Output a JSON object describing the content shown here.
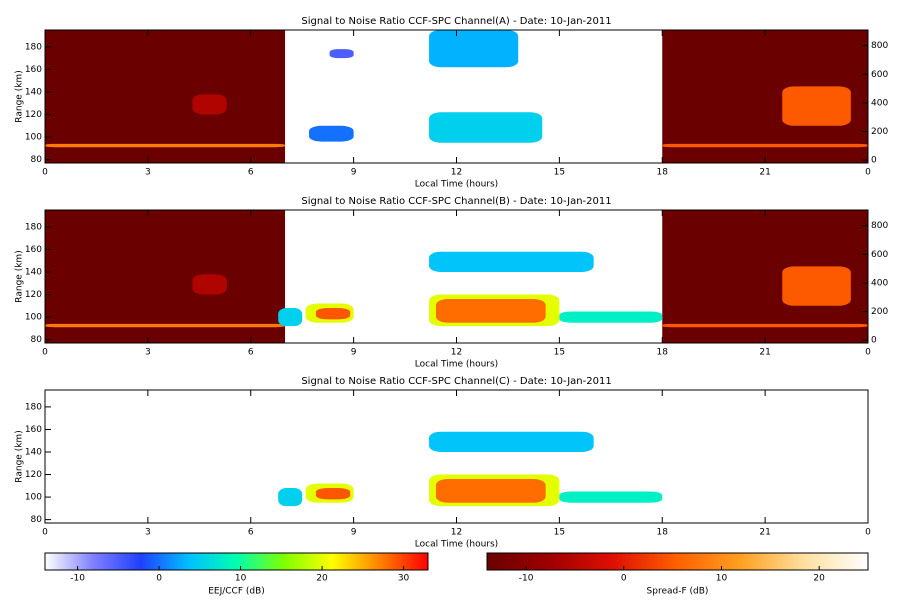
{
  "chart_data": [
    {
      "type": "heatmap",
      "title": "Signal to Noise Ratio CCF-SPC Channel(A) - Date: 10-Jan-2011",
      "xlabel": "Local Time (hours)",
      "ylabel": "Range (km)",
      "xlim": [
        0,
        24
      ],
      "xticks": [
        0,
        3,
        6,
        9,
        12,
        15,
        18,
        21,
        {
          "value": 24,
          "label": "0"
        }
      ],
      "ylim": [
        77,
        195
      ],
      "yticks": [
        80,
        100,
        120,
        140,
        160,
        180
      ],
      "y2lim": [
        -20,
        910
      ],
      "y2ticks": [
        0,
        200,
        400,
        600,
        800
      ],
      "regions": [
        {
          "x": [
            0,
            7
          ],
          "y": [
            77,
            195
          ],
          "value": -14,
          "scale": 1
        },
        {
          "x": [
            18,
            24
          ],
          "y": [
            77,
            195
          ],
          "value": -14,
          "scale": 1
        },
        {
          "x": [
            0,
            7
          ],
          "y": [
            91,
            94
          ],
          "value": 8,
          "scale": 1
        },
        {
          "x": [
            18,
            24
          ],
          "y": [
            91,
            94
          ],
          "value": 5,
          "scale": 1
        },
        {
          "x": [
            4.3,
            5.3
          ],
          "y": [
            120,
            138
          ],
          "value": -6,
          "scale": 1
        },
        {
          "x": [
            21.5,
            23.5
          ],
          "y": [
            110,
            145
          ],
          "value": 5,
          "scale": 1
        },
        {
          "x": [
            7.7,
            9
          ],
          "y": [
            96,
            110
          ],
          "value": 0,
          "scale": 0
        },
        {
          "x": [
            8.3,
            9
          ],
          "y": [
            170,
            178
          ],
          "value": -5,
          "scale": 0
        },
        {
          "x": [
            11.2,
            14.5
          ],
          "y": [
            95,
            122
          ],
          "value": 5,
          "scale": 0
        },
        {
          "x": [
            11.2,
            13.8
          ],
          "y": [
            162,
            195
          ],
          "value": 3,
          "scale": 0
        }
      ]
    },
    {
      "type": "heatmap",
      "title": "Signal to Noise Ratio CCF-SPC Channel(B) - Date: 10-Jan-2011",
      "xlabel": "Local Time (hours)",
      "ylabel": "Range (km)",
      "xlim": [
        0,
        24
      ],
      "xticks": [
        0,
        3,
        6,
        9,
        12,
        15,
        18,
        21,
        {
          "value": 24,
          "label": "0"
        }
      ],
      "ylim": [
        77,
        195
      ],
      "yticks": [
        80,
        100,
        120,
        140,
        160,
        180
      ],
      "y2lim": [
        -20,
        910
      ],
      "y2ticks": [
        0,
        200,
        400,
        600,
        800
      ],
      "regions": [
        {
          "x": [
            0,
            7
          ],
          "y": [
            77,
            195
          ],
          "value": -14,
          "scale": 1
        },
        {
          "x": [
            18,
            24
          ],
          "y": [
            77,
            195
          ],
          "value": -14,
          "scale": 1
        },
        {
          "x": [
            0,
            7
          ],
          "y": [
            91,
            94
          ],
          "value": 8,
          "scale": 1
        },
        {
          "x": [
            18,
            24
          ],
          "y": [
            91,
            94
          ],
          "value": 5,
          "scale": 1
        },
        {
          "x": [
            4.3,
            5.3
          ],
          "y": [
            120,
            138
          ],
          "value": -6,
          "scale": 1
        },
        {
          "x": [
            21.5,
            23.5
          ],
          "y": [
            110,
            145
          ],
          "value": 5,
          "scale": 1
        },
        {
          "x": [
            6.8,
            7.5
          ],
          "y": [
            92,
            108
          ],
          "value": 5,
          "scale": 0
        },
        {
          "x": [
            7.6,
            9
          ],
          "y": [
            95,
            112
          ],
          "value": 20,
          "scale": 0
        },
        {
          "x": [
            7.9,
            8.9
          ],
          "y": [
            98,
            108
          ],
          "value": 29,
          "scale": 0
        },
        {
          "x": [
            11.2,
            15
          ],
          "y": [
            92,
            120
          ],
          "value": 20,
          "scale": 0
        },
        {
          "x": [
            11.4,
            14.6
          ],
          "y": [
            95,
            116
          ],
          "value": 28,
          "scale": 0
        },
        {
          "x": [
            15,
            18
          ],
          "y": [
            95,
            105
          ],
          "value": 8,
          "scale": 0
        },
        {
          "x": [
            11.2,
            16
          ],
          "y": [
            140,
            158
          ],
          "value": 4,
          "scale": 0
        }
      ]
    },
    {
      "type": "heatmap",
      "title": "Signal to Noise Ratio CCF-SPC Channel(C) - Date: 10-Jan-2011",
      "xlabel": "Local Time (hours)",
      "ylabel": "Range (km)",
      "xlim": [
        0,
        24
      ],
      "xticks": [
        0,
        3,
        6,
        9,
        12,
        15,
        18,
        21,
        {
          "value": 24,
          "label": "0"
        }
      ],
      "ylim": [
        77,
        195
      ],
      "yticks": [
        80,
        100,
        120,
        140,
        160,
        180
      ],
      "regions": [
        {
          "x": [
            6.8,
            7.5
          ],
          "y": [
            92,
            108
          ],
          "value": 5,
          "scale": 0
        },
        {
          "x": [
            7.6,
            9
          ],
          "y": [
            95,
            112
          ],
          "value": 20,
          "scale": 0
        },
        {
          "x": [
            7.9,
            8.9
          ],
          "y": [
            98,
            108
          ],
          "value": 29,
          "scale": 0
        },
        {
          "x": [
            11.2,
            15
          ],
          "y": [
            92,
            120
          ],
          "value": 20,
          "scale": 0
        },
        {
          "x": [
            11.4,
            14.6
          ],
          "y": [
            95,
            116
          ],
          "value": 28,
          "scale": 0
        },
        {
          "x": [
            15,
            18
          ],
          "y": [
            95,
            105
          ],
          "value": 8,
          "scale": 0
        },
        {
          "x": [
            11.2,
            16
          ],
          "y": [
            140,
            158
          ],
          "value": 4,
          "scale": 0
        }
      ]
    }
  ],
  "colorbars": [
    {
      "label": "EEJ/CCF (dB)",
      "lim": [
        -14,
        33
      ],
      "ticks": [
        -10,
        0,
        10,
        20,
        30
      ],
      "colors": [
        "#ffffff",
        "#8080ff",
        "#2040ff",
        "#00c0ff",
        "#00ffb0",
        "#80ff00",
        "#ffff00",
        "#ff8000",
        "#ff0000"
      ]
    },
    {
      "label": "Spread-F (dB)",
      "lim": [
        -14,
        25
      ],
      "ticks": [
        -10,
        0,
        10,
        20
      ],
      "colors": [
        "#6a0000",
        "#a00000",
        "#e01000",
        "#ff6000",
        "#ffa020",
        "#ffe0a0",
        "#ffffff"
      ]
    }
  ]
}
